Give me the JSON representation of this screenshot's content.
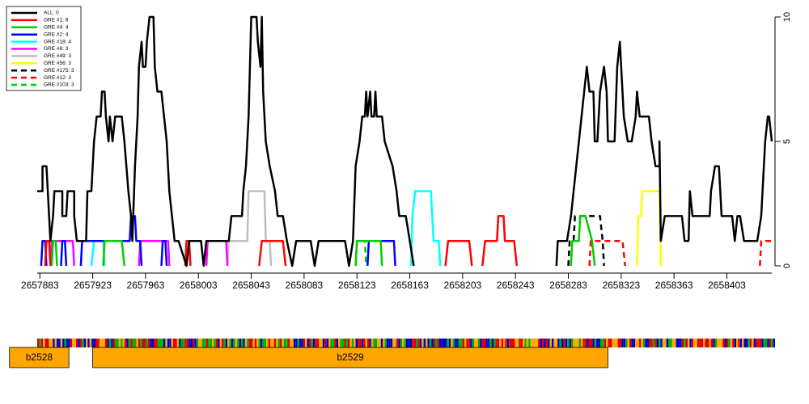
{
  "chart_data": {
    "type": "line",
    "xlim": [
      2657881,
      2658437
    ],
    "ylim": [
      0,
      10
    ],
    "xticks": [
      2657883,
      2657923,
      2657963,
      2658003,
      2658043,
      2658083,
      2658123,
      2658163,
      2658203,
      2658243,
      2658283,
      2658323,
      2658363,
      2658403
    ],
    "yticks": [
      0,
      5,
      10
    ],
    "legend": "top-left",
    "series": [
      {
        "name": "ALL: 0",
        "color": "#000000",
        "dash": false,
        "x": [
          2657881,
          2657885,
          2657885,
          2657888,
          2657889,
          2657891,
          2657893,
          2657894,
          2657900,
          2657900,
          2657903,
          2657904,
          2657909,
          2657909,
          2657911,
          2657918,
          2657919,
          2657922,
          2657924,
          2657926,
          2657929,
          2657930,
          2657932,
          2657933,
          2657935,
          2657936,
          2657938,
          2657940,
          2657945,
          2657947,
          2657950,
          2657952,
          2657953,
          2657955,
          2657957,
          2657958,
          2657960,
          2657961,
          2657963,
          2657964,
          2657966,
          2657969,
          2657970,
          2657972,
          2657975,
          2657977,
          2657979,
          2657981,
          2657983,
          2657985,
          2657988,
          2657994,
          2657996,
          2658005,
          2658007,
          2658009,
          2658026,
          2658028,
          2658036,
          2658037,
          2658039,
          2658040,
          2658041,
          2658042,
          2658043,
          2658047,
          2658048,
          2658050,
          2658051,
          2658052,
          2658054,
          2658057,
          2658061,
          2658063,
          2658067,
          2658070,
          2658074,
          2658077,
          2658088,
          2658091,
          2658094,
          2658114,
          2658117,
          2658120,
          2658122,
          2658125,
          2658127,
          2658129,
          2658130,
          2658131,
          2658133,
          2658134,
          2658136,
          2658137,
          2658138,
          2658142,
          2658144,
          2658150,
          2658153,
          2658155,
          2658160,
          2658163,
          2658166,
          null,
          2658274,
          2658275,
          2658282,
          2658285,
          2658289,
          2658291,
          2658293,
          2658295,
          2658297,
          2658299,
          2658302,
          2658303,
          2658305,
          2658307,
          2658310,
          2658312,
          2658313,
          2658315,
          2658318,
          2658320,
          2658322,
          2658323,
          2658325,
          2658328,
          2658331,
          2658334,
          2658335,
          2658337,
          2658340,
          2658344,
          2658346,
          2658349,
          2658352,
          2658352,
          2658353,
          2658356,
          2658369,
          2658371,
          2658374,
          2658375,
          2658377,
          2658390,
          2658391,
          2658394,
          2658397,
          2658399,
          2658407,
          2658409,
          2658411,
          2658413,
          2658416,
          2658426,
          2658429,
          2658431,
          2658432,
          2658434,
          2658435,
          2658437
        ],
        "values": [
          3,
          3,
          4,
          4,
          3,
          1,
          2,
          3,
          3,
          2,
          2,
          3,
          3,
          2,
          1,
          1,
          3,
          3,
          5,
          6,
          6,
          7,
          7,
          6,
          5,
          6,
          5,
          6,
          6,
          5,
          3,
          2,
          1,
          4,
          6,
          8,
          9,
          8,
          8,
          9,
          10,
          10,
          8,
          7,
          7,
          6,
          5,
          3,
          2,
          1,
          1,
          0,
          1,
          1,
          0,
          1,
          1,
          2,
          2,
          3,
          4,
          5,
          6,
          8,
          10,
          10,
          9,
          8,
          10,
          7,
          5,
          4,
          3,
          2,
          2,
          1,
          0,
          1,
          1,
          0,
          1,
          1,
          0,
          1,
          4,
          5,
          6,
          6,
          7,
          6,
          7,
          6,
          6,
          7,
          6,
          6,
          5,
          4,
          3,
          2,
          2,
          1,
          0,
          null,
          0,
          1,
          1,
          2,
          4,
          5,
          6,
          7,
          8,
          7,
          7,
          5,
          5,
          7,
          8,
          7,
          5,
          5,
          5,
          8,
          9,
          8,
          6,
          5,
          5,
          6,
          7,
          6,
          6,
          6,
          5,
          4,
          4,
          5,
          1,
          2,
          2,
          1,
          1,
          3,
          2,
          2,
          3,
          4,
          4,
          2,
          2,
          1,
          2,
          2,
          1,
          1,
          2,
          4,
          5,
          6,
          6,
          5
        ]
      },
      {
        "name": "GRE #1: 8",
        "color": "#ff0000",
        "dash": false,
        "x": [
          2657887,
          2657888,
          2657890,
          2657891,
          null,
          2657993,
          2657994,
          2657996,
          2657997,
          null,
          2658049,
          2658051,
          2658067,
          2658069,
          null,
          2658190,
          2658192,
          2658208,
          2658210,
          null,
          2658218,
          2658220,
          2658229,
          2658230,
          2658234,
          2658235,
          2658242,
          2658244
        ],
        "values": [
          0,
          1,
          1,
          0,
          null,
          0,
          1,
          1,
          0,
          null,
          0,
          1,
          1,
          0,
          null,
          0,
          1,
          1,
          0,
          null,
          0,
          1,
          1,
          2,
          2,
          1,
          1,
          0
        ]
      },
      {
        "name": "GRE #4: 4",
        "color": "#00cd00",
        "dash": false,
        "x": [
          2657892,
          2657893,
          2657895,
          2657896,
          null,
          2657931,
          2657932,
          2657945,
          2657947,
          null,
          2658122,
          2658123,
          2658141,
          2658142,
          null,
          2658285,
          2658286,
          2658291,
          2658292,
          2658296,
          2658301,
          2658303
        ],
        "values": [
          0,
          1,
          1,
          0,
          null,
          0,
          1,
          1,
          0,
          null,
          0,
          1,
          1,
          0,
          null,
          0,
          1,
          1,
          2,
          2,
          1,
          0
        ]
      },
      {
        "name": "GRE #2: 4",
        "color": "#0000ff",
        "dash": false,
        "x": [
          2657884,
          2657885,
          2657887,
          2657888,
          null,
          2657899,
          2657900,
          2657902,
          2657903,
          null,
          2657914,
          2657915,
          2657951,
          2657952,
          2657955,
          2657956,
          2657959,
          2657960,
          null,
          2657975,
          2657976,
          2657978,
          2657979,
          null,
          2658131,
          2658132,
          2658151,
          2658152
        ],
        "values": [
          0,
          1,
          1,
          0,
          null,
          0,
          1,
          1,
          0,
          null,
          0,
          1,
          1,
          2,
          2,
          1,
          1,
          0,
          null,
          0,
          1,
          1,
          0,
          null,
          0,
          1,
          1,
          0
        ]
      },
      {
        "name": "GRE #18: 4",
        "color": "#00ffff",
        "dash": false,
        "x": [
          2657922,
          2657924,
          2657931,
          2657932,
          null,
          2658164,
          2658165,
          2658167,
          2658179,
          2658181,
          2658185,
          2658186
        ],
        "values": [
          0,
          1,
          1,
          0,
          null,
          0,
          2,
          3,
          3,
          1,
          1,
          0
        ]
      },
      {
        "name": "GRE #8: 3",
        "color": "#ff00ff",
        "dash": false,
        "x": [
          2657891,
          2657892,
          2657908,
          2657909,
          null,
          2657958,
          2657959,
          2657980,
          2657981,
          null,
          2658009,
          2658010,
          2658024,
          2658025
        ],
        "values": [
          0,
          1,
          1,
          0,
          null,
          0,
          1,
          1,
          0,
          null,
          0,
          1,
          1,
          0
        ]
      },
      {
        "name": "GRE #49: 3",
        "color": "#bebebe",
        "dash": false,
        "x": [
          2658025,
          2658026,
          2658040,
          2658041,
          2658053,
          2658054,
          2658057,
          2658058
        ],
        "values": [
          0,
          1,
          1,
          3,
          3,
          1,
          1,
          0
        ]
      },
      {
        "name": "GRE #56: 3",
        "color": "#ffff00",
        "dash": false,
        "x": [
          2658335,
          2658336,
          2658338,
          2658339,
          2658352,
          2658353
        ],
        "values": [
          0,
          2,
          2,
          3,
          3,
          0
        ]
      },
      {
        "name": "GRE #175: 3",
        "color": "#000000",
        "dash": true,
        "x": [
          2658283,
          2658284,
          2658287,
          2658288,
          2658307,
          2658309,
          2658310
        ],
        "values": [
          0,
          1,
          1,
          2,
          2,
          1,
          0
        ]
      },
      {
        "name": "GRE #12: 3",
        "color": "#ff0000",
        "dash": true,
        "x": [
          2658299,
          2658300,
          2658324,
          2658326,
          null,
          2658428,
          2658429,
          2658437
        ],
        "values": [
          0,
          1,
          1,
          0,
          null,
          0,
          1,
          1
        ]
      },
      {
        "name": "GRE #103: 3",
        "color": "#00cd00",
        "dash": true,
        "x": [
          2658122,
          2658123,
          2658129,
          2658130
        ],
        "values": [
          0,
          1,
          1,
          0
        ]
      }
    ],
    "genes": [
      {
        "label": "b2528",
        "start": 2657860,
        "end": 2657905
      },
      {
        "label": "b2529",
        "start": 2657923,
        "end": 2658313
      }
    ]
  }
}
